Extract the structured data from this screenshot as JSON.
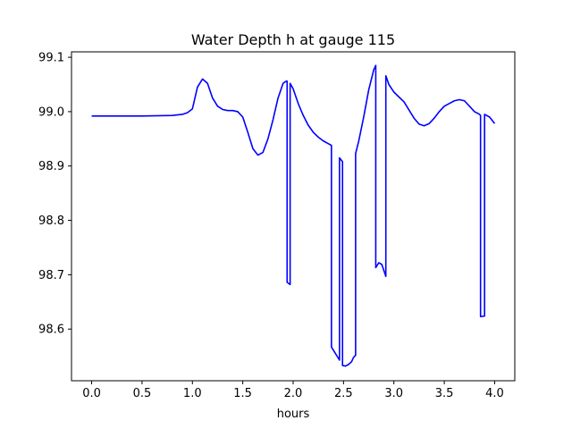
{
  "chart_data": {
    "type": "line",
    "title": "Water Depth h at gauge 115",
    "xlabel": "hours",
    "ylabel": "",
    "xlim": [
      -0.2,
      4.2
    ],
    "ylim": [
      98.505,
      99.11
    ],
    "xticks": [
      0.0,
      0.5,
      1.0,
      1.5,
      2.0,
      2.5,
      3.0,
      3.5,
      4.0
    ],
    "xtick_labels": [
      "0.0",
      "0.5",
      "1.0",
      "1.5",
      "2.0",
      "2.5",
      "3.0",
      "3.5",
      "4.0"
    ],
    "yticks": [
      98.6,
      98.7,
      98.8,
      98.9,
      99.0,
      99.1
    ],
    "ytick_labels": [
      "98.6",
      "98.7",
      "98.8",
      "98.9",
      "99.0",
      "99.1"
    ],
    "grid": false,
    "series": [
      {
        "name": "",
        "color": "#0000ff",
        "x": [
          0.0,
          0.5,
          0.8,
          0.9,
          0.95,
          1.0,
          1.05,
          1.1,
          1.15,
          1.2,
          1.25,
          1.3,
          1.35,
          1.4,
          1.45,
          1.5,
          1.55,
          1.6,
          1.65,
          1.7,
          1.75,
          1.8,
          1.85,
          1.9,
          1.93,
          1.94,
          1.94,
          1.97,
          1.97,
          2.0,
          2.05,
          2.1,
          2.15,
          2.2,
          2.25,
          2.3,
          2.35,
          2.38,
          2.38,
          2.42,
          2.46,
          2.46,
          2.49,
          2.49,
          2.52,
          2.55,
          2.58,
          2.6,
          2.62,
          2.62,
          2.65,
          2.7,
          2.75,
          2.8,
          2.82,
          2.82,
          2.85,
          2.88,
          2.92,
          2.92,
          2.95,
          3.0,
          3.05,
          3.1,
          3.15,
          3.2,
          3.25,
          3.3,
          3.35,
          3.4,
          3.45,
          3.5,
          3.55,
          3.6,
          3.65,
          3.7,
          3.75,
          3.8,
          3.85,
          3.86,
          3.86,
          3.9,
          3.9,
          3.95,
          4.0
        ],
        "values": [
          98.992,
          98.992,
          98.993,
          98.995,
          98.998,
          99.005,
          99.045,
          99.06,
          99.052,
          99.025,
          99.01,
          99.004,
          99.002,
          99.002,
          99.0,
          98.99,
          98.962,
          98.932,
          98.92,
          98.925,
          98.95,
          98.985,
          99.025,
          99.052,
          99.056,
          99.056,
          98.686,
          98.682,
          99.052,
          99.042,
          99.015,
          98.993,
          98.975,
          98.962,
          98.953,
          98.946,
          98.941,
          98.938,
          98.567,
          98.555,
          98.543,
          98.915,
          98.908,
          98.533,
          98.532,
          98.535,
          98.54,
          98.548,
          98.552,
          98.923,
          98.945,
          98.99,
          99.04,
          99.077,
          99.085,
          98.713,
          98.722,
          98.719,
          98.697,
          99.066,
          99.05,
          99.036,
          99.027,
          99.018,
          99.003,
          98.988,
          98.977,
          98.974,
          98.978,
          98.988,
          99.0,
          99.01,
          99.015,
          99.02,
          99.022,
          99.02,
          99.01,
          99.0,
          98.995,
          98.993,
          98.623,
          98.624,
          98.995,
          98.99,
          98.978
        ]
      }
    ]
  }
}
